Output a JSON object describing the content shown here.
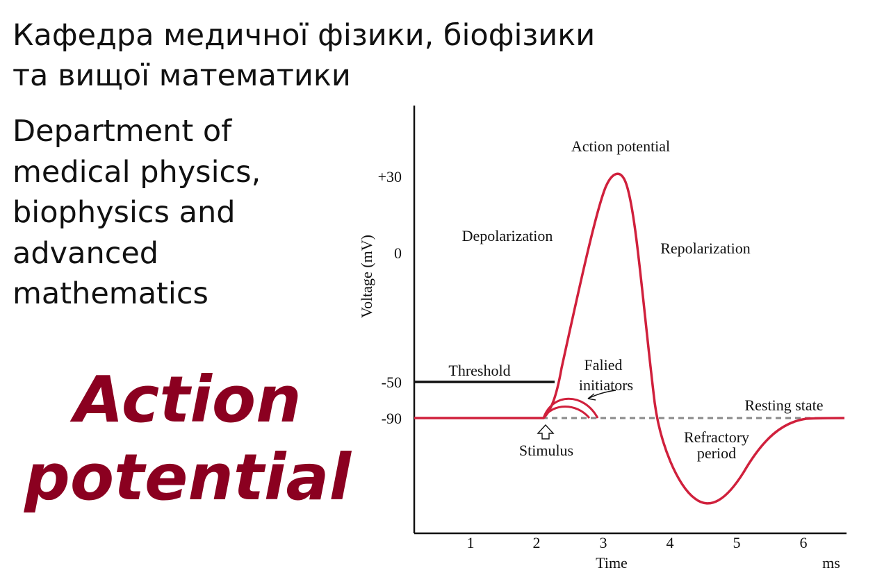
{
  "heading_ua": [
    "Кафедра медичної фізики, біофізики",
    "та вищої математики"
  ],
  "heading_en": [
    "Department of",
    "medical physics,",
    "biophysics and",
    "advanced",
    "mathematics"
  ],
  "main_title": [
    "Action",
    "potential"
  ],
  "colors": {
    "title": "#8b0020",
    "curve": "#d0203c",
    "threshold": "#111111",
    "resting_dash": "#8a8a8a"
  },
  "diagram": {
    "y_axis_label": "Voltage (mV)",
    "x_axis_label": "Time",
    "x_unit": "ms",
    "y_ticks": [
      "+30",
      "0",
      "-50",
      "-90"
    ],
    "x_ticks": [
      "1",
      "2",
      "3",
      "4",
      "5",
      "6"
    ],
    "labels": {
      "action_potential": "Action potential",
      "depolarization": "Depolarization",
      "repolarization": "Repolarization",
      "threshold": "Threshold",
      "failed_initiators": [
        "Falied",
        "initiators"
      ],
      "resting_state": "Resting state",
      "stimulus": "Stimulus",
      "refractory_period": [
        "Refractory",
        "period"
      ]
    }
  }
}
